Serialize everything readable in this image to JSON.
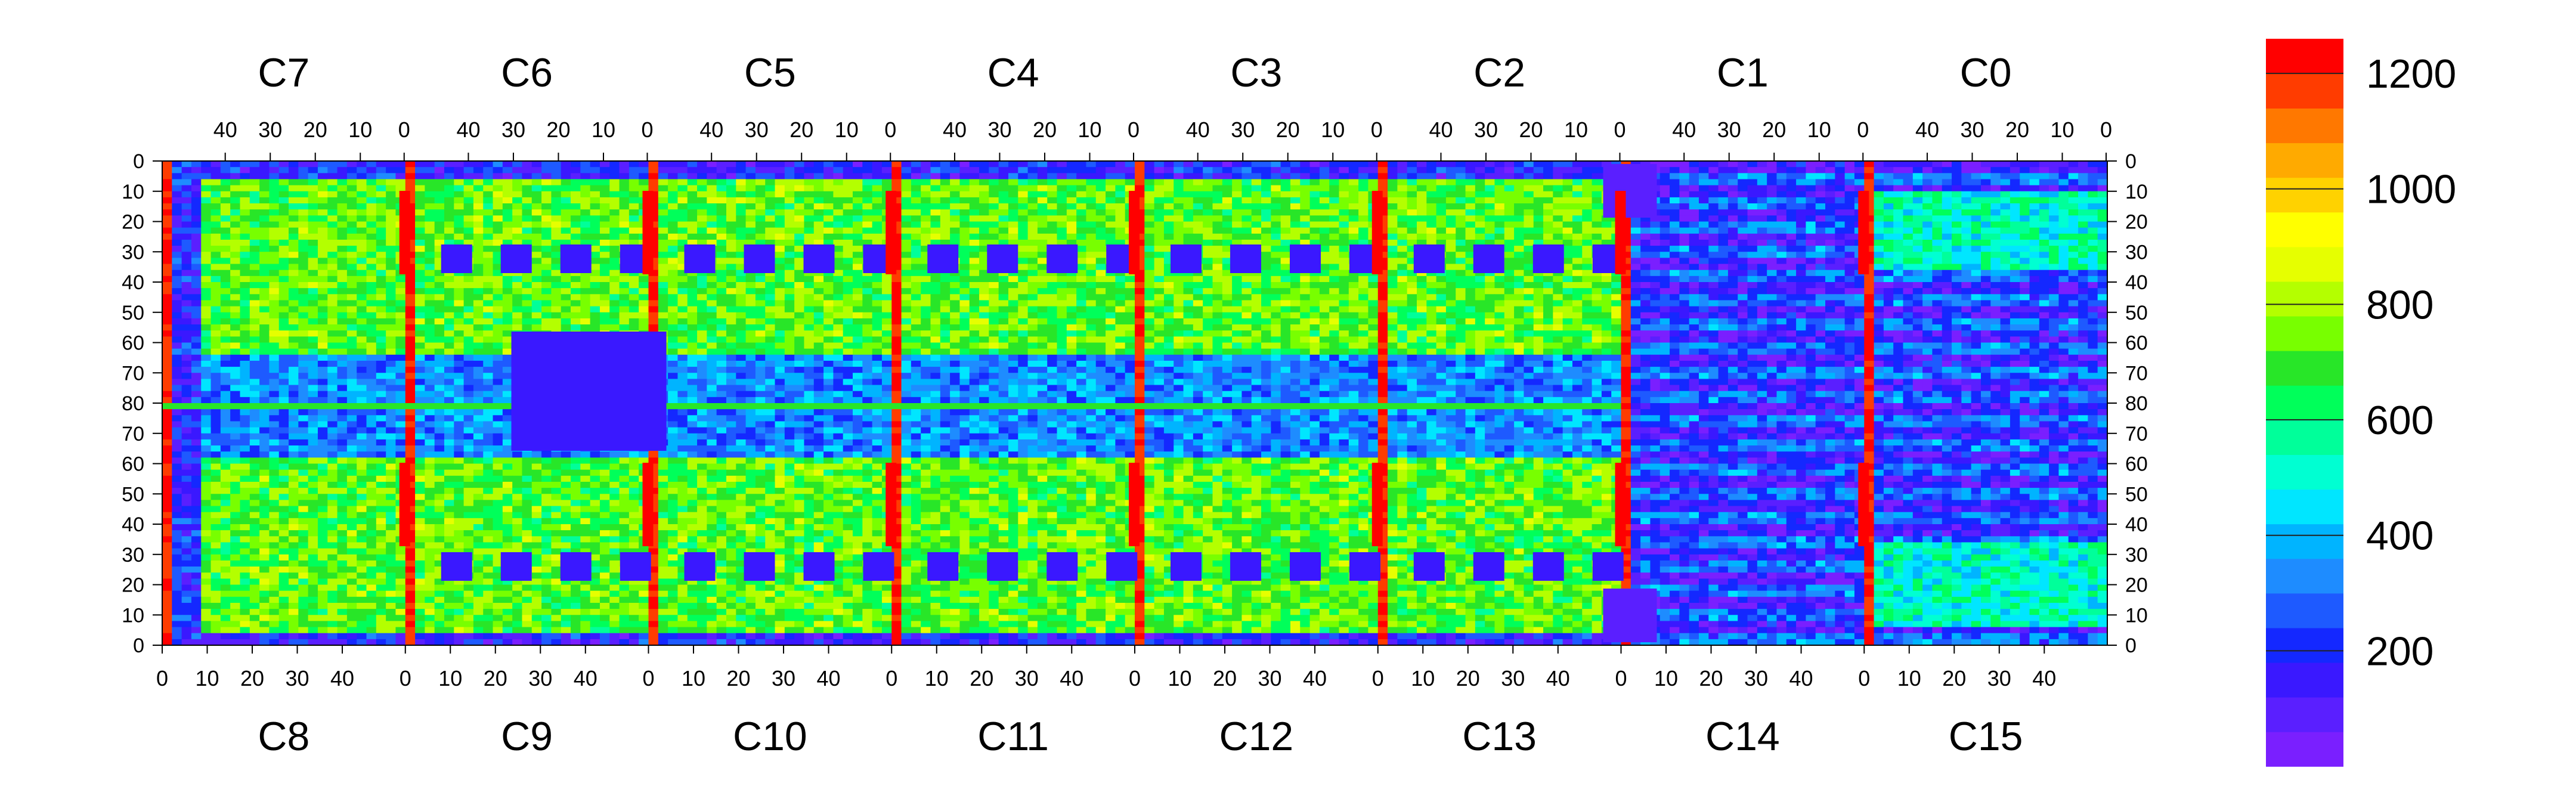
{
  "chart_data": {
    "type": "heatmap",
    "top_chip_labels": [
      "C7",
      "C6",
      "C5",
      "C4",
      "C3",
      "C2",
      "C1",
      "C0"
    ],
    "bottom_chip_labels": [
      "C8",
      "C9",
      "C10",
      "C11",
      "C12",
      "C13",
      "C14",
      "C15"
    ],
    "top_tick_labels": [
      "40",
      "30",
      "20",
      "10",
      "0"
    ],
    "bottom_tick_labels": [
      "0",
      "10",
      "20",
      "30",
      "40"
    ],
    "y_tick_labels": [
      "0",
      "10",
      "20",
      "30",
      "40",
      "50",
      "60",
      "70",
      "80",
      "70",
      "60",
      "50",
      "40",
      "30",
      "20",
      "10",
      "0"
    ],
    "colorbar_tick_labels": [
      "1200",
      "1000",
      "800",
      "600",
      "400",
      "200"
    ],
    "colorbar_tick_values": [
      1200,
      1000,
      800,
      600,
      400,
      200
    ],
    "colorbar_range": [
      0,
      1260
    ],
    "columns_per_chip": 50,
    "rows_per_half": 80,
    "grid": false,
    "colors": {
      "low": "#7a1fff",
      "mid_low": "#1e5aff",
      "mid": "#00e6e6",
      "mid_high": "#28e628",
      "high_mid": "#ffff00",
      "high": "#ff0000"
    }
  }
}
